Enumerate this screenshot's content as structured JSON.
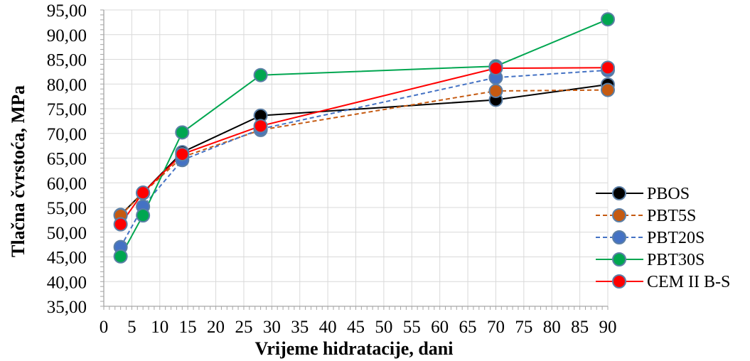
{
  "chart_data": {
    "type": "line",
    "xlabel": "Vrijeme hidratacije, dani",
    "ylabel": "Tlačna čvrstoća, MPa",
    "xlim": [
      0,
      90
    ],
    "ylim": [
      35,
      95
    ],
    "x_ticks": [
      "0",
      "5",
      "10",
      "15",
      "20",
      "25",
      "30",
      "35",
      "40",
      "45",
      "50",
      "55",
      "60",
      "65",
      "70",
      "75",
      "80",
      "85",
      "90"
    ],
    "y_ticks": [
      "35,00",
      "40,00",
      "45,00",
      "50,00",
      "55,00",
      "60,00",
      "65,00",
      "70,00",
      "75,00",
      "80,00",
      "85,00",
      "90,00",
      "95,00"
    ],
    "grid": true,
    "legend_position": "right",
    "x": [
      3,
      7,
      14,
      28,
      70,
      90
    ],
    "series": [
      {
        "name": "PBOS",
        "values": [
          53.5,
          58.0,
          66.2,
          73.6,
          76.8,
          79.9
        ],
        "line_color": "#000000",
        "marker_color": "#000000",
        "dashed": false
      },
      {
        "name": "PBT5S",
        "values": [
          53.4,
          57.9,
          65.2,
          70.7,
          78.6,
          78.8
        ],
        "line_color": "#c55a11",
        "marker_color": "#c55a11",
        "dashed": true
      },
      {
        "name": "PBT20S",
        "values": [
          47.0,
          55.2,
          64.6,
          70.9,
          81.3,
          82.8
        ],
        "line_color": "#4472c4",
        "marker_color": "#4472c4",
        "dashed": true
      },
      {
        "name": "PBT30S",
        "values": [
          45.1,
          53.4,
          70.2,
          81.8,
          83.6,
          93.1
        ],
        "line_color": "#00a650",
        "marker_color": "#00a650",
        "dashed": false
      },
      {
        "name": "CEM II B-S",
        "values": [
          51.6,
          58.0,
          65.8,
          71.5,
          83.2,
          83.3
        ],
        "line_color": "#ff0000",
        "marker_color": "#ff0000",
        "dashed": false
      }
    ]
  }
}
